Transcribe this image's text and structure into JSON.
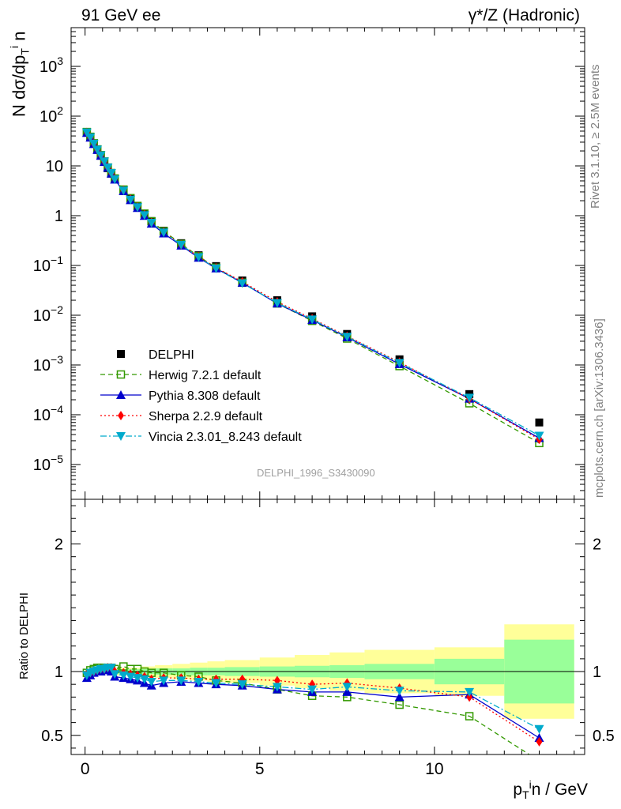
{
  "header": {
    "left_label": "91 GeV ee",
    "right_label": "γ*/Z (Hadronic)"
  },
  "side_notes": {
    "rivet": "Rivet 3.1.10, ≥ 2.5M events",
    "mcplots": "mcplots.cern.ch [arXiv:1306.3436]"
  },
  "watermark": "DELPHI_1996_S3430090",
  "colors": {
    "data": "#000000",
    "herwig": "#339900",
    "pythia": "#0000cc",
    "sherpa": "#ff0000",
    "vincia": "#00aacc",
    "band_inner": "#99ff99",
    "band_outer": "#ffff99"
  },
  "chart_data": [
    {
      "type": "scatter",
      "name": "main",
      "ylabel": "N dσ/dp_T^i n",
      "yscale": "log",
      "xlim": [
        -0.4,
        14.3
      ],
      "ylim": [
        2e-06,
        6000
      ],
      "x": [
        0.05,
        0.15,
        0.25,
        0.35,
        0.45,
        0.55,
        0.65,
        0.75,
        0.85,
        1.1,
        1.3,
        1.5,
        1.7,
        1.9,
        2.25,
        2.75,
        3.25,
        3.75,
        4.5,
        5.5,
        6.5,
        7.5,
        9.0,
        11.0,
        13.0
      ],
      "series": [
        {
          "name": "DELPHI",
          "marker": "square-filled",
          "values": [
            48,
            38,
            28,
            21,
            16,
            12,
            9.0,
            7.0,
            5.5,
            3.3,
            2.2,
            1.55,
            1.1,
            0.78,
            0.5,
            0.28,
            0.16,
            0.097,
            0.05,
            0.02,
            0.0095,
            0.0042,
            0.0013,
            0.00026,
            7e-05
          ]
        },
        {
          "name": "Herwig 7.2.1 default",
          "marker": "square-open",
          "values": [
            48,
            38.5,
            28.5,
            21.5,
            16.5,
            12.3,
            9.3,
            7.2,
            5.6,
            3.35,
            2.25,
            1.57,
            1.1,
            0.77,
            0.49,
            0.27,
            0.153,
            0.09,
            0.045,
            0.0172,
            0.0077,
            0.0034,
            0.00095,
            0.00017,
            2.7e-05
          ]
        },
        {
          "name": "Pythia 8.308 default",
          "marker": "triangle-up",
          "values": [
            46,
            37,
            27.5,
            21,
            16,
            12,
            9.2,
            7.0,
            5.3,
            3.1,
            2.05,
            1.43,
            0.99,
            0.69,
            0.44,
            0.25,
            0.143,
            0.087,
            0.045,
            0.0172,
            0.008,
            0.0036,
            0.00104,
            0.00021,
            3.4e-05
          ]
        },
        {
          "name": "Sherpa 2.2.9 default",
          "marker": "diamond",
          "values": [
            47,
            37.5,
            28,
            21.3,
            16.3,
            12.2,
            9.3,
            7.2,
            5.5,
            3.25,
            2.15,
            1.5,
            1.05,
            0.73,
            0.47,
            0.26,
            0.15,
            0.09,
            0.047,
            0.0186,
            0.0085,
            0.0038,
            0.00114,
            0.00021,
            3.2e-05
          ]
        },
        {
          "name": "Vincia 2.3.01_8.243 default",
          "marker": "triangle-down",
          "values": [
            47,
            37.5,
            28,
            21.3,
            16.3,
            12.3,
            9.3,
            7.2,
            5.4,
            3.2,
            2.1,
            1.48,
            1.03,
            0.72,
            0.46,
            0.26,
            0.147,
            0.087,
            0.044,
            0.0176,
            0.0082,
            0.0037,
            0.0011,
            0.00022,
            3.8e-05
          ]
        }
      ],
      "legend": {
        "position": "lower-left"
      }
    },
    {
      "type": "line",
      "name": "ratio",
      "xlabel": "p_T^i n / GeV",
      "ylabel": "Ratio to DELPHI",
      "xlim": [
        -0.4,
        14.3
      ],
      "ylim": [
        0.35,
        2.35
      ],
      "x": [
        0.05,
        0.15,
        0.25,
        0.35,
        0.45,
        0.55,
        0.65,
        0.75,
        0.85,
        1.1,
        1.3,
        1.5,
        1.7,
        1.9,
        2.25,
        2.75,
        3.25,
        3.75,
        4.5,
        5.5,
        6.5,
        7.5,
        9.0,
        11.0,
        13.0
      ],
      "bin_edges": [
        0,
        0.1,
        0.2,
        0.3,
        0.4,
        0.5,
        0.6,
        0.7,
        0.8,
        0.9,
        1.2,
        1.4,
        1.6,
        1.8,
        2.0,
        2.5,
        3.0,
        3.5,
        4.0,
        5.0,
        6.0,
        7.0,
        8.0,
        10.0,
        12.0,
        14.0
      ],
      "bands": {
        "inner_halfwidth": [
          0.015,
          0.015,
          0.015,
          0.015,
          0.015,
          0.015,
          0.015,
          0.015,
          0.015,
          0.02,
          0.02,
          0.02,
          0.02,
          0.02,
          0.025,
          0.025,
          0.03,
          0.03,
          0.035,
          0.04,
          0.045,
          0.05,
          0.06,
          0.1,
          0.25
        ],
        "outer_halfwidth": [
          0.02,
          0.02,
          0.02,
          0.02,
          0.02,
          0.02,
          0.02,
          0.02,
          0.02,
          0.03,
          0.03,
          0.03,
          0.04,
          0.04,
          0.05,
          0.06,
          0.07,
          0.08,
          0.09,
          0.11,
          0.13,
          0.15,
          0.17,
          0.19,
          0.37
        ]
      },
      "series": [
        {
          "name": "Herwig 7.2.1 default",
          "values": [
            0.99,
            1.01,
            1.02,
            1.03,
            1.03,
            1.03,
            1.03,
            1.03,
            1.02,
            1.04,
            1.02,
            1.02,
            1.0,
            0.99,
            0.99,
            0.97,
            0.96,
            0.93,
            0.91,
            0.86,
            0.81,
            0.8,
            0.74,
            0.65,
            0.3
          ]
        },
        {
          "name": "Pythia 8.308 default",
          "values": [
            0.95,
            0.97,
            0.99,
            1.0,
            1.0,
            1.01,
            1.02,
            1.0,
            0.96,
            0.95,
            0.94,
            0.93,
            0.91,
            0.89,
            0.91,
            0.92,
            0.91,
            0.9,
            0.89,
            0.86,
            0.84,
            0.84,
            0.8,
            0.82,
            0.48
          ]
        },
        {
          "name": "Sherpa 2.2.9 default",
          "values": [
            0.98,
            0.99,
            1.0,
            1.01,
            1.02,
            1.02,
            1.03,
            1.03,
            1.0,
            0.99,
            0.98,
            0.97,
            0.96,
            0.94,
            0.95,
            0.95,
            0.94,
            0.94,
            0.94,
            0.93,
            0.9,
            0.91,
            0.87,
            0.8,
            0.45
          ]
        },
        {
          "name": "Vincia 2.3.01_8.243 default",
          "values": [
            0.97,
            0.99,
            1.0,
            1.01,
            1.02,
            1.02,
            1.03,
            1.03,
            0.98,
            0.97,
            0.96,
            0.95,
            0.94,
            0.92,
            0.93,
            0.93,
            0.92,
            0.91,
            0.9,
            0.88,
            0.86,
            0.88,
            0.85,
            0.84,
            0.55
          ]
        }
      ]
    }
  ]
}
